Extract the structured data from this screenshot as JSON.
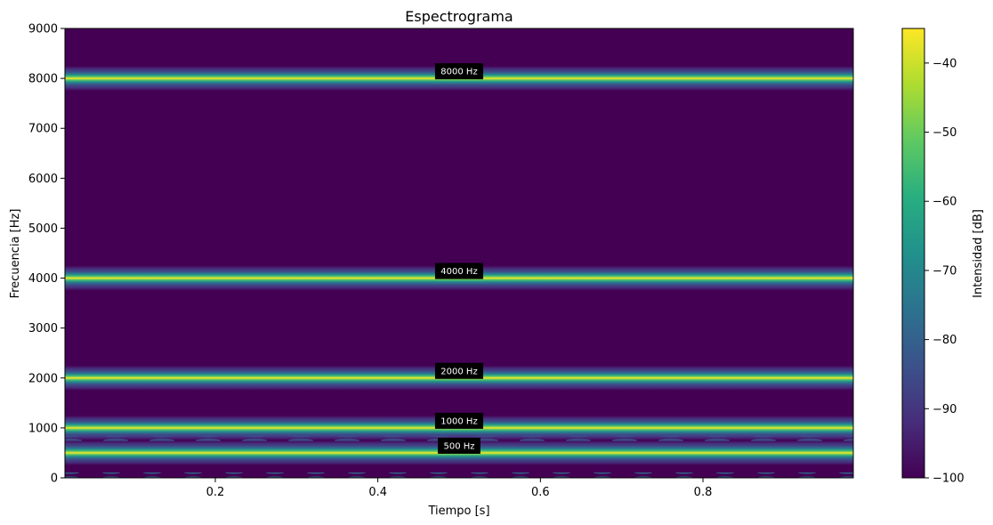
{
  "chart_data": {
    "type": "heatmap",
    "title": "Espectrograma",
    "xlabel": "Tiempo [s]",
    "ylabel": "Frecuencia [Hz]",
    "xlim": [
      0.015,
      0.985
    ],
    "ylim": [
      0,
      9000
    ],
    "xticks": [
      0.2,
      0.4,
      0.6,
      0.8
    ],
    "xtick_labels": [
      "0.2",
      "0.4",
      "0.6",
      "0.8"
    ],
    "yticks": [
      0,
      1000,
      2000,
      3000,
      4000,
      5000,
      6000,
      7000,
      8000,
      9000
    ],
    "ytick_labels": [
      "0",
      "1000",
      "2000",
      "3000",
      "4000",
      "5000",
      "6000",
      "7000",
      "8000",
      "9000"
    ],
    "tones_hz": [
      500,
      1000,
      2000,
      4000,
      8000
    ],
    "annotations": [
      {
        "freq": 8000,
        "label": "8000 Hz"
      },
      {
        "freq": 4000,
        "label": "4000 Hz"
      },
      {
        "freq": 2000,
        "label": "2000 Hz"
      },
      {
        "freq": 1000,
        "label": "1000 Hz"
      },
      {
        "freq": 500,
        "label": "500 Hz"
      }
    ],
    "annotation_time": 0.5,
    "colorbar": {
      "label": "Intensidad [dB]",
      "range": [
        -100,
        -35
      ],
      "ticks": [
        -40,
        -50,
        -60,
        -70,
        -80,
        -90,
        -100
      ],
      "tick_labels": [
        "−40",
        "−50",
        "−60",
        "−70",
        "−80",
        "−90",
        "−100"
      ],
      "colormap": "viridis"
    },
    "background_db": -98
  }
}
